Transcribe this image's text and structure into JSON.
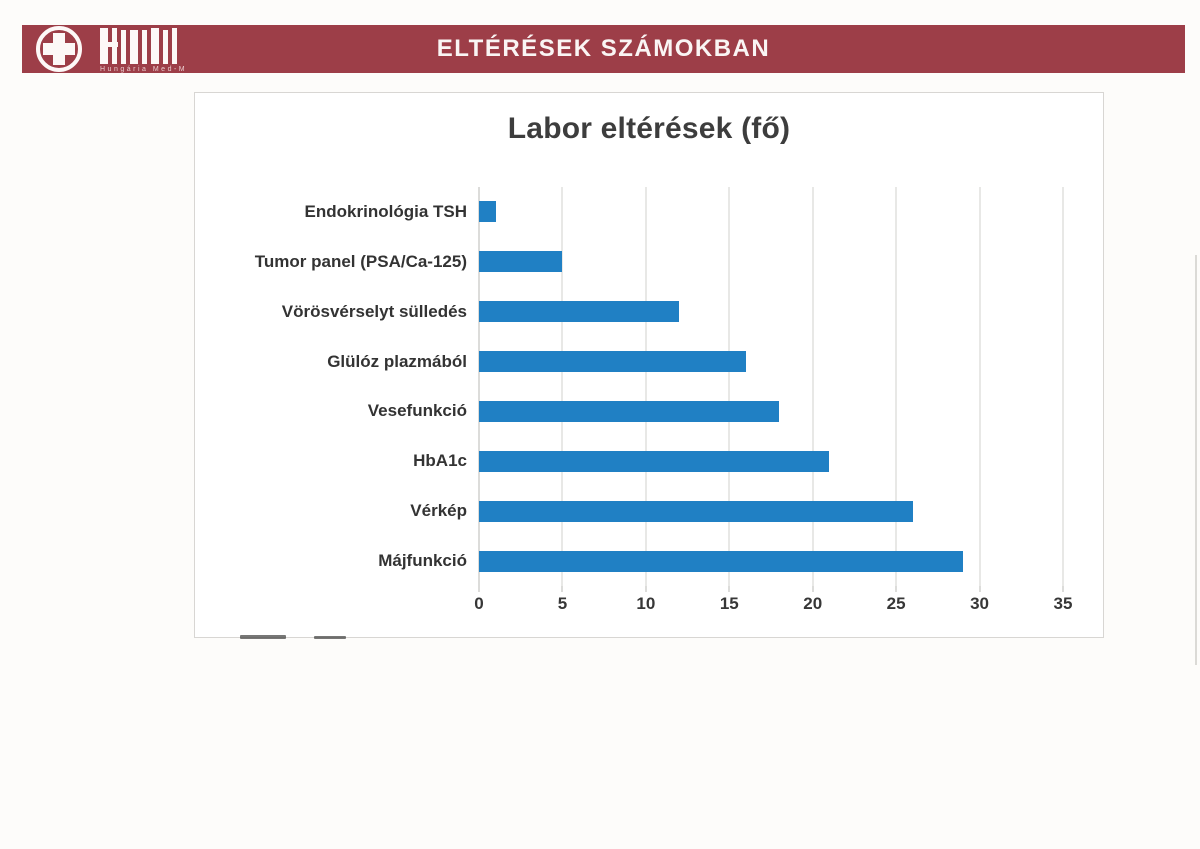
{
  "header": {
    "title": "ELTÉRÉSEK SZÁMOKBAN",
    "logo_subtext": "Hungária Med-M",
    "bg_color": "#9d3e48"
  },
  "chart_data": {
    "type": "bar",
    "orientation": "horizontal",
    "title": "Labor eltérések (fő)",
    "categories": [
      "Endokrinológia TSH",
      "Tumor panel (PSA/Ca-125)",
      "Vörösvérselyt sülledés",
      "Glülóz plazmából",
      "Vesefunkció",
      "HbA1c",
      "Vérkép",
      "Májfunkció"
    ],
    "values": [
      1,
      5,
      12,
      16,
      18,
      21,
      26,
      29
    ],
    "xlabel": "",
    "ylabel": "",
    "xlim": [
      0,
      35
    ],
    "xticks": [
      0,
      5,
      10,
      15,
      20,
      25,
      30,
      35
    ],
    "grid": true,
    "legend": false,
    "bar_color": "#2080c4"
  }
}
